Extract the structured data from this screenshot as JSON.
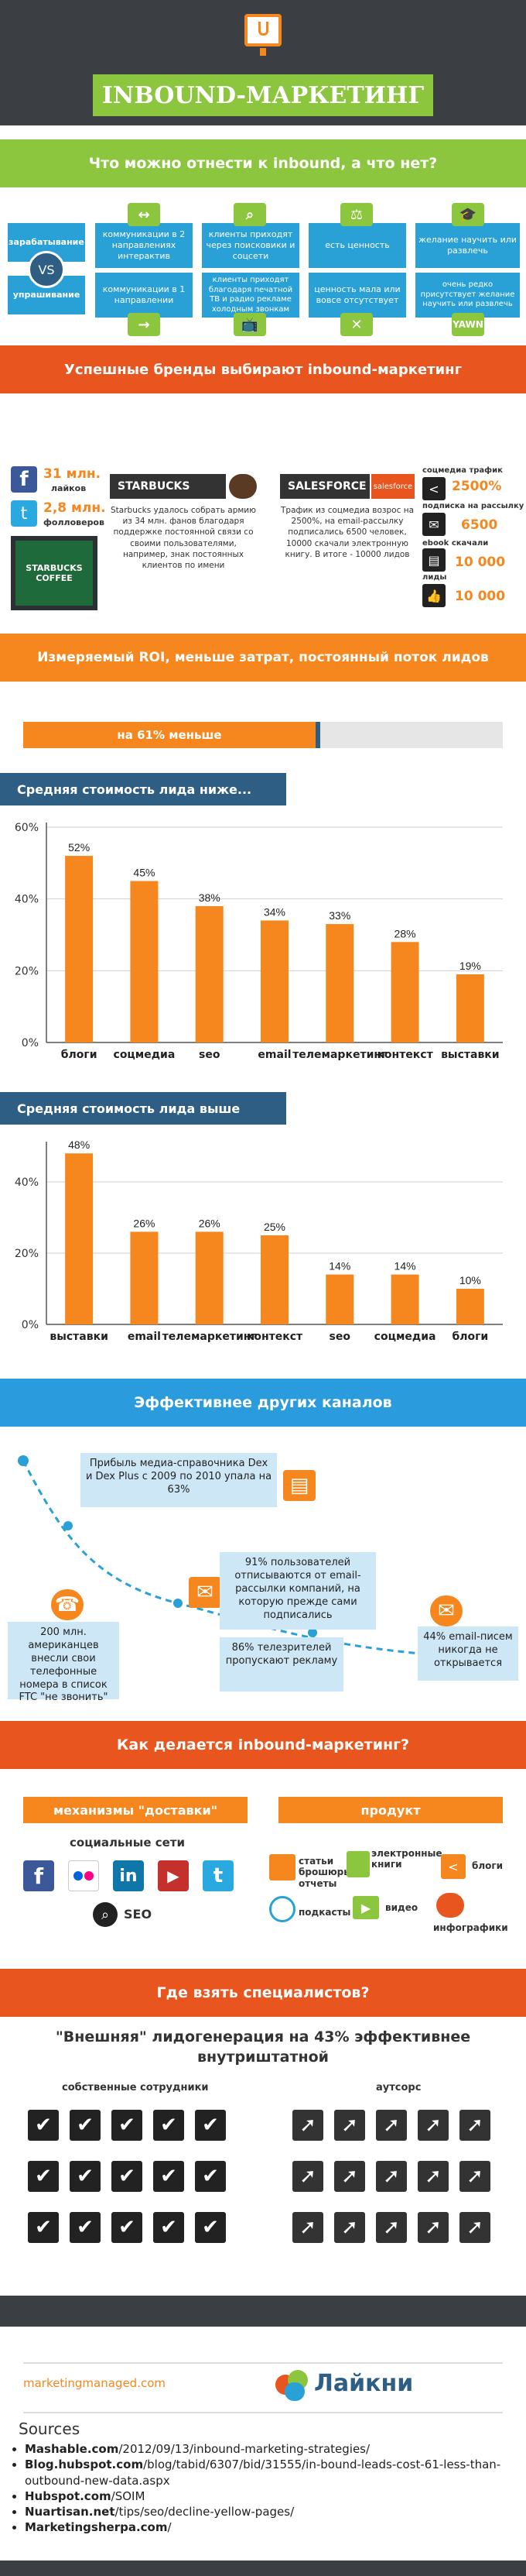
{
  "header": {
    "title": "INBOUND-МАРКЕТИНГ"
  },
  "section1": {
    "title": "Что можно отнести к inbound, а что нет?",
    "row_top_label": "зарабатывание",
    "row_bottom_label": "упрашивание",
    "vs": "VS",
    "top_cells": [
      "коммуникации в 2 направлениях интерактив",
      "клиенты приходят через поисковики и соцсети",
      "есть ценность",
      "желание научить или развлечь"
    ],
    "bottom_cells": [
      "коммуникации в 1 направлении",
      "клиенты приходят благодаря печатной ТВ и радио рекламе холодным звонкам",
      "ценность мала или вовсе отсутствует",
      "очень редко присутствует желание научить или развлечь"
    ]
  },
  "section2": {
    "title": "Успешные бренды выбирают inbound-маркетинг",
    "stat_fb": "31 млн.",
    "stat_fb_label": "лайков",
    "stat_tw": "2,8 млн.",
    "stat_tw_label": "фолловеров",
    "starbucks_name": "STARBUCKS",
    "starbucks_text": "Starbucks удалось собрать армию из 34 млн. фанов благодаря поддержке постоянной связи со своими пользователями, например, знак постоянных клиентов по имени",
    "starbucks_logo_text": "STARBUCKS COFFEE",
    "salesforce_name": "SALESFORCE",
    "salesforce_logo_text": "salesforce",
    "salesforce_text": "Трафик из соцмедиа возрос на 2500%, на email-рассылку подписались 6500 человек, 10000 скачали электронную книгу. В итоге - 10000 лидов",
    "sf_stats": [
      {
        "label": "соцмедиа трафик",
        "value": "2500%"
      },
      {
        "label": "подписка на рассылку",
        "value": "6500"
      },
      {
        "label": "ebook скачали",
        "value": "10 000"
      },
      {
        "label": "лиды",
        "value": "10 000"
      }
    ]
  },
  "section3": {
    "title": "Измеряемый ROI, меньше затрат, постоянный поток лидов",
    "cost_bar_label": "на 61% меньше",
    "cost_bar_value": 0.61
  },
  "chart_lower_title": "Средняя стоимость лида ниже...",
  "chart_higher_title": "Средняя стоимость лида выше",
  "chart_data": [
    {
      "type": "bar",
      "title": "Средняя стоимость лида ниже...",
      "categories": [
        "блоги",
        "соцмедиа",
        "seo",
        "email",
        "телемаркетинг",
        "контекст",
        "выставки"
      ],
      "values": [
        52,
        45,
        38,
        34,
        33,
        28,
        19
      ],
      "labels": [
        "52%",
        "45%",
        "38%",
        "34%",
        "33%",
        "28%",
        "19%"
      ],
      "ylim": [
        0,
        60
      ],
      "yticks": [
        "0%",
        "20%",
        "40%",
        "60%"
      ],
      "grid": true
    },
    {
      "type": "bar",
      "title": "Средняя стоимость лида выше",
      "categories": [
        "выставки",
        "email",
        "телемаркетинг",
        "контекст",
        "seo",
        "соцмедиа",
        "блоги"
      ],
      "values": [
        48,
        26,
        26,
        25,
        14,
        14,
        10
      ],
      "labels": [
        "48%",
        "26%",
        "26%",
        "25%",
        "14%",
        "14%",
        "10%"
      ],
      "ylim": [
        0,
        50
      ],
      "yticks": [
        "0%",
        "20%",
        "40%"
      ],
      "grid": true
    }
  ],
  "section4": {
    "title": "Эффективнее других каналов",
    "callout1": "Прибыль медиа-справочника Dex и Dex Plus с 2009 по 2010 упала на 63%",
    "callout2": "200 млн. американцев внесли свои телефонные номера в список FTC \"не звонить\"",
    "callout3": "91% пользователей отписываются от email-рассылки компаний, на которую прежде сами подписались",
    "callout4": "86% телезрителей пропускают рекламу",
    "callout5": "44% email-писем никогда не открывается"
  },
  "section5": {
    "title": "Как делается inbound-маркетинг?",
    "left_ribbon": "механизмы \"доставки\"",
    "right_ribbon": "продукт",
    "social_title": "социальные сети",
    "seo": "SEO",
    "products": [
      "статьи брошюры отчеты",
      "электронные книги",
      "блоги",
      "подкасты",
      "видео",
      "инфографики"
    ]
  },
  "section6": {
    "title": "Где взять специалистов?",
    "headline": "\"Внешняя\" лидогенерация на 43% эффективнее внутриштатной",
    "left_label": "собственные сотрудники",
    "right_label": "аутсорс"
  },
  "footer": {
    "site": "marketingmanaged.com",
    "brand": "Лайкни",
    "sources_title": "Sources",
    "sources": [
      {
        "bold": "Mashable.com",
        "rest": "/2012/09/13/inbound-marketing-strategies/"
      },
      {
        "bold": "Blog.hubspot.com",
        "rest": "/blog/tabid/6307/bid/31555/in-bound-leads-cost-61-less-than-outbound-new-data.aspx"
      },
      {
        "bold": "Hubspot.com",
        "rest": "/SOIM"
      },
      {
        "bold": "Nuartisan.net",
        "rest": "/tips/seo/decline-yellow-pages/"
      },
      {
        "bold": "Marketingsherpa.com",
        "rest": "/"
      }
    ]
  },
  "colors": {
    "green": "#8cc63f",
    "orange": "#f6871f",
    "blue": "#29a1d7",
    "dark": "#3b3f44",
    "red": "#e8551e"
  }
}
